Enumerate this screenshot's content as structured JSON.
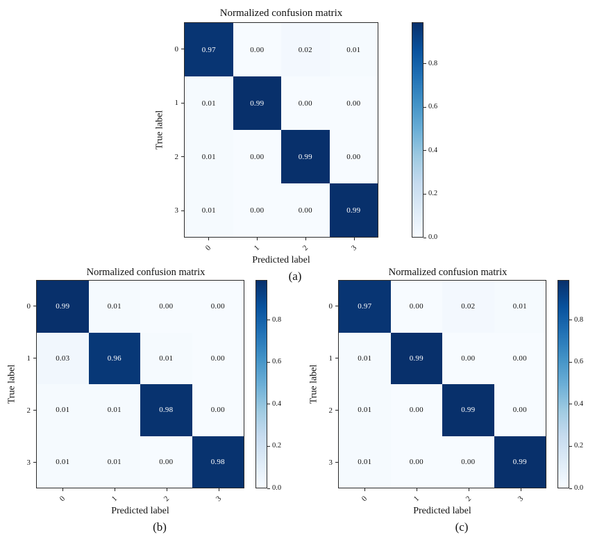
{
  "chart_data": [
    {
      "type": "heatmap",
      "title": "Normalized confusion matrix",
      "xlabel": "Predicted label",
      "ylabel": "True label",
      "x_tick_labels": [
        "0",
        "1",
        "2",
        "3"
      ],
      "y_tick_labels": [
        "0",
        "1",
        "2",
        "3"
      ],
      "values": [
        [
          0.97,
          0.0,
          0.02,
          0.01
        ],
        [
          0.01,
          0.99,
          0.0,
          0.0
        ],
        [
          0.01,
          0.0,
          0.99,
          0.0
        ],
        [
          0.01,
          0.0,
          0.0,
          0.99
        ]
      ],
      "vmin": 0.0,
      "vmax": 0.99,
      "colormap": "Blues",
      "colorbar_ticks": [
        0.0,
        0.2,
        0.4,
        0.6,
        0.8
      ],
      "caption": "(a)"
    },
    {
      "type": "heatmap",
      "title": "Normalized confusion matrix",
      "xlabel": "Predicted label",
      "ylabel": "True label",
      "x_tick_labels": [
        "0",
        "1",
        "2",
        "3"
      ],
      "y_tick_labels": [
        "0",
        "1",
        "2",
        "3"
      ],
      "values": [
        [
          0.99,
          0.01,
          0.0,
          0.0
        ],
        [
          0.03,
          0.96,
          0.01,
          0.0
        ],
        [
          0.01,
          0.01,
          0.98,
          0.0
        ],
        [
          0.01,
          0.01,
          0.0,
          0.98
        ]
      ],
      "vmin": 0.0,
      "vmax": 0.99,
      "colormap": "Blues",
      "colorbar_ticks": [
        0.0,
        0.2,
        0.4,
        0.6,
        0.8
      ],
      "caption": "(b)"
    },
    {
      "type": "heatmap",
      "title": "Normalized confusion matrix",
      "xlabel": "Predicted label",
      "ylabel": "True label",
      "x_tick_labels": [
        "0",
        "1",
        "2",
        "3"
      ],
      "y_tick_labels": [
        "0",
        "1",
        "2",
        "3"
      ],
      "values": [
        [
          0.97,
          0.0,
          0.02,
          0.01
        ],
        [
          0.01,
          0.99,
          0.0,
          0.0
        ],
        [
          0.01,
          0.0,
          0.99,
          0.0
        ],
        [
          0.01,
          0.0,
          0.0,
          0.99
        ]
      ],
      "vmin": 0.0,
      "vmax": 0.99,
      "colormap": "Blues",
      "colorbar_ticks": [
        0.0,
        0.2,
        0.4,
        0.6,
        0.8
      ],
      "caption": "(c)"
    }
  ],
  "colors": {
    "background": "#ffffff",
    "axis_line": "#2a2a2a",
    "cell_text_light": "#ffffff",
    "cell_text_dark": "#111111",
    "colormap_anchors": [
      "#f7fbff",
      "#deebf7",
      "#c6dbef",
      "#9ecae1",
      "#6baed6",
      "#4292c6",
      "#2171b5",
      "#08519c",
      "#08306b"
    ]
  }
}
